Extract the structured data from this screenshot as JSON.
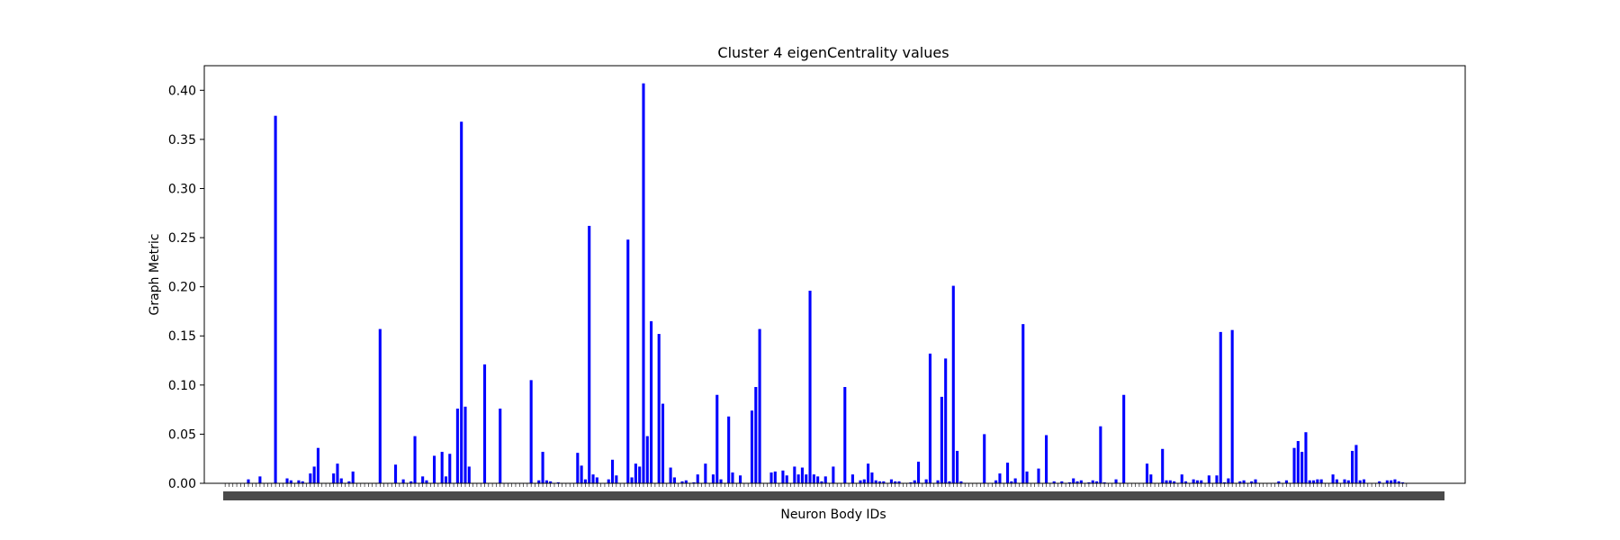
{
  "chart_data": {
    "type": "bar",
    "title": "Cluster 4 eigenCentrality values",
    "xlabel": "Neuron Body IDs",
    "ylabel": "Graph Metric",
    "ylim": [
      0,
      0.425
    ],
    "yticks": [
      "0.00",
      "0.05",
      "0.10",
      "0.15",
      "0.20",
      "0.25",
      "0.30",
      "0.35",
      "0.40"
    ],
    "grid": false,
    "legend": "none",
    "bar_color": "#0000ff",
    "xtick_labels_note": "x tick labels are overlapping neuron body IDs and are illegible",
    "values": [
      0.0,
      0.0,
      0.0,
      0.0,
      0.0,
      0.0,
      0.004,
      0.0,
      0.0,
      0.007,
      0.0,
      0.0,
      0.0,
      0.374,
      0.0,
      0.0,
      0.005,
      0.003,
      0.0,
      0.003,
      0.002,
      0.0,
      0.01,
      0.017,
      0.036,
      0.0,
      0.0,
      0.0,
      0.01,
      0.02,
      0.005,
      0.0,
      0.002,
      0.012,
      0.0,
      0.0,
      0.0,
      0.0,
      0.0,
      0.0,
      0.157,
      0.0,
      0.0,
      0.0,
      0.019,
      0.0,
      0.004,
      0.0,
      0.002,
      0.048,
      0.0,
      0.007,
      0.003,
      0.0,
      0.028,
      0.0,
      0.032,
      0.007,
      0.03,
      0.0,
      0.076,
      0.368,
      0.078,
      0.017,
      0.0,
      0.0,
      0.0,
      0.121,
      0.0,
      0.0,
      0.0,
      0.076,
      0.0,
      0.0,
      0.0,
      0.0,
      0.0,
      0.0,
      0.0,
      0.105,
      0.0,
      0.003,
      0.032,
      0.003,
      0.002,
      0.0,
      0.001,
      0.0,
      0.0,
      0.0,
      0.0,
      0.031,
      0.018,
      0.004,
      0.262,
      0.009,
      0.006,
      0.0,
      0.0,
      0.004,
      0.024,
      0.008,
      0.0,
      0.0,
      0.248,
      0.006,
      0.02,
      0.017,
      0.407,
      0.048,
      0.165,
      0.0,
      0.152,
      0.081,
      0.0,
      0.016,
      0.006,
      0.0,
      0.002,
      0.003,
      0.0,
      0.001,
      0.009,
      0.0,
      0.02,
      0.0,
      0.009,
      0.09,
      0.004,
      0.0,
      0.068,
      0.011,
      0.0,
      0.008,
      0.0,
      0.0,
      0.074,
      0.098,
      0.157,
      0.0,
      0.0,
      0.011,
      0.012,
      0.0,
      0.013,
      0.008,
      0.0,
      0.017,
      0.009,
      0.016,
      0.009,
      0.196,
      0.009,
      0.007,
      0.002,
      0.007,
      0.0,
      0.017,
      0.0,
      0.0,
      0.098,
      0.0,
      0.009,
      0.0,
      0.003,
      0.004,
      0.02,
      0.011,
      0.003,
      0.002,
      0.002,
      0.0,
      0.004,
      0.002,
      0.002,
      0.0,
      0.0,
      0.001,
      0.003,
      0.022,
      0.0,
      0.004,
      0.132,
      0.0,
      0.003,
      0.088,
      0.127,
      0.002,
      0.201,
      0.033,
      0.002,
      0.0,
      0.0,
      0.0,
      0.0,
      0.0,
      0.05,
      0.0,
      0.0,
      0.003,
      0.01,
      0.0,
      0.021,
      0.002,
      0.005,
      0.0,
      0.162,
      0.012,
      0.0,
      0.0,
      0.015,
      0.0,
      0.049,
      0.0,
      0.002,
      0.0,
      0.002,
      0.0,
      0.001,
      0.005,
      0.002,
      0.003,
      0.0,
      0.001,
      0.003,
      0.002,
      0.058,
      0.001,
      0.0,
      0.0,
      0.004,
      0.0,
      0.09,
      0.0,
      0.0,
      0.0,
      0.0,
      0.0,
      0.02,
      0.009,
      0.0,
      0.0,
      0.035,
      0.003,
      0.003,
      0.002,
      0.0,
      0.009,
      0.002,
      0.0,
      0.004,
      0.003,
      0.003,
      0.0,
      0.008,
      0.0,
      0.008,
      0.154,
      0.001,
      0.005,
      0.156,
      0.0,
      0.002,
      0.003,
      0.0,
      0.002,
      0.004,
      0.0,
      0.0,
      0.0,
      0.0,
      0.0,
      0.002,
      0.0,
      0.003,
      0.0,
      0.036,
      0.043,
      0.032,
      0.052,
      0.003,
      0.003,
      0.004,
      0.004,
      0.0,
      0.0,
      0.009,
      0.004,
      0.0,
      0.004,
      0.003,
      0.033,
      0.039,
      0.003,
      0.004,
      0.0,
      0.0,
      0.0,
      0.002,
      0.0,
      0.003,
      0.003,
      0.004,
      0.002,
      0.001,
      0.0
    ]
  }
}
